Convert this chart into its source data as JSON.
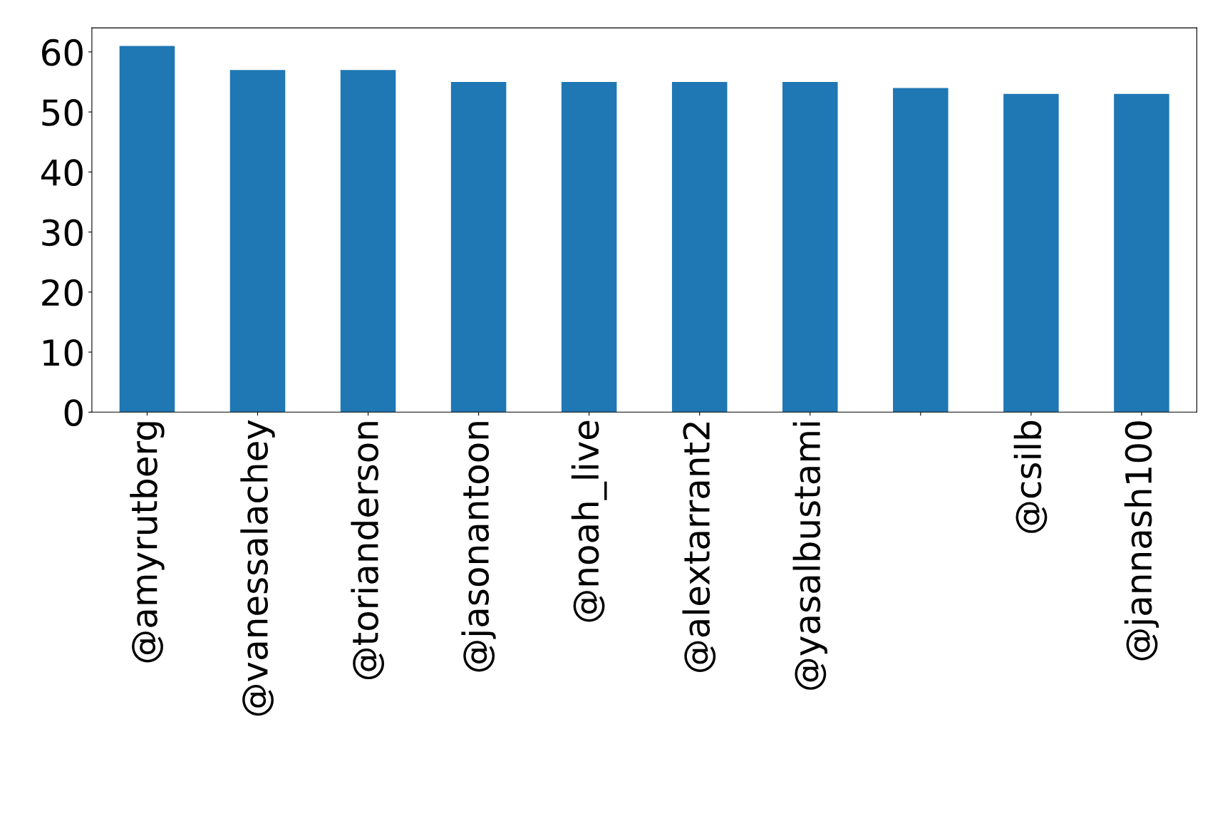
{
  "chart_data": {
    "type": "bar",
    "categories": [
      "@amyrutberg",
      "@vanessalachey",
      "@torianderson",
      "@jasonantoon",
      "@noah_live",
      "@alextarrant2",
      "@yasalbustami",
      null,
      "@csilb",
      "@jannash100"
    ],
    "values": [
      61,
      57,
      57,
      55,
      55,
      55,
      55,
      54,
      53,
      53
    ],
    "color": "#1f77b4",
    "ylim": [
      0,
      64
    ],
    "yticks": [
      0,
      10,
      20,
      30,
      40,
      50,
      60
    ],
    "grid": false,
    "legend": false
  }
}
